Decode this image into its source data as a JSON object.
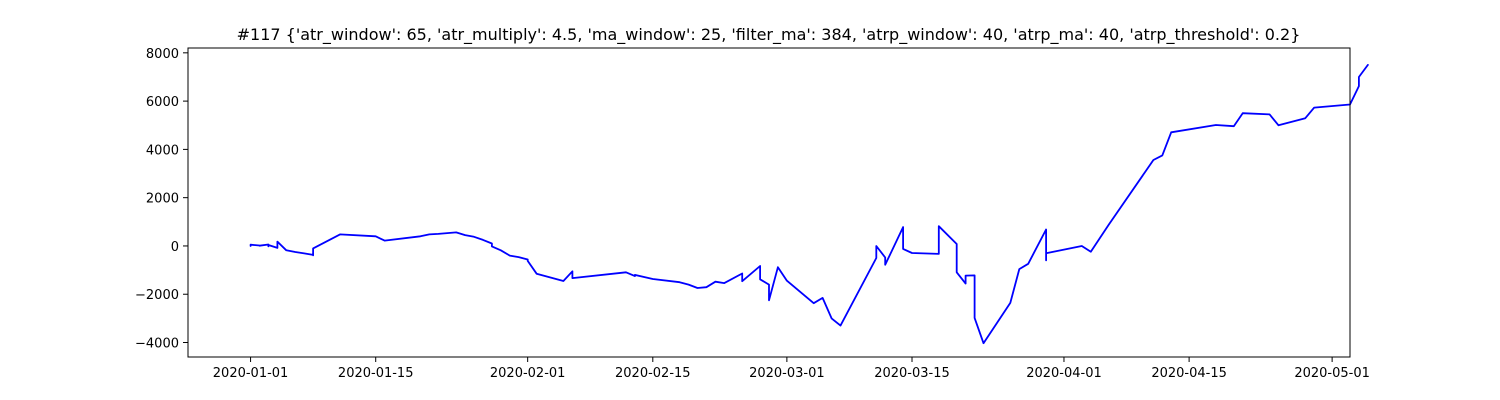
{
  "chart_data": {
    "type": "line",
    "title": "#117 {'atr_window': 65, 'atr_multiply': 4.5, 'ma_window': 25, 'filter_ma': 384, 'atrp_window': 40, 'atrp_ma': 40, 'atrp_threshold': 0.2}",
    "xlabel": "",
    "ylabel": "",
    "x_axis_type": "date",
    "xlim": [
      "2019-12-25",
      "2020-05-03"
    ],
    "ylim": [
      -4600,
      8200
    ],
    "x_ticks": [
      "2020-01-01",
      "2020-01-15",
      "2020-02-01",
      "2020-02-15",
      "2020-03-01",
      "2020-03-15",
      "2020-04-01",
      "2020-04-15",
      "2020-05-01"
    ],
    "y_ticks": [
      -4000,
      -2000,
      0,
      2000,
      4000,
      6000,
      8000
    ],
    "grid": false,
    "line_color": "#0000ff",
    "series": [
      {
        "points": [
          [
            "2020-01-01",
            0
          ],
          [
            "2020-01-01",
            50
          ],
          [
            "2020-01-02",
            20
          ],
          [
            "2020-01-02",
            10
          ],
          [
            "2020-01-03",
            60
          ],
          [
            "2020-01-03",
            -20
          ],
          [
            "2020-01-03",
            40
          ],
          [
            "2020-01-04",
            -80
          ],
          [
            "2020-01-04",
            180
          ],
          [
            "2020-01-05",
            -180
          ],
          [
            "2020-01-06",
            -250
          ],
          [
            "2020-01-07",
            -310
          ],
          [
            "2020-01-08",
            -370
          ],
          [
            "2020-01-08",
            -390
          ],
          [
            "2020-01-08",
            -100
          ],
          [
            "2020-01-11",
            480
          ],
          [
            "2020-01-15",
            400
          ],
          [
            "2020-01-16",
            220
          ],
          [
            "2020-01-20",
            400
          ],
          [
            "2020-01-21",
            480
          ],
          [
            "2020-01-22",
            500
          ],
          [
            "2020-01-24",
            560
          ],
          [
            "2020-01-25",
            450
          ],
          [
            "2020-01-26",
            380
          ],
          [
            "2020-01-27",
            250
          ],
          [
            "2020-01-28",
            100
          ],
          [
            "2020-01-28",
            -20
          ],
          [
            "2020-01-29",
            -180
          ],
          [
            "2020-01-30",
            -400
          ],
          [
            "2020-01-31",
            -460
          ],
          [
            "2020-02-01",
            -560
          ],
          [
            "2020-02-01",
            -620
          ],
          [
            "2020-02-02",
            -1150
          ],
          [
            "2020-02-05",
            -1450
          ],
          [
            "2020-02-06",
            -1050
          ],
          [
            "2020-02-06",
            -1330
          ],
          [
            "2020-02-12",
            -1090
          ],
          [
            "2020-02-13",
            -1250
          ],
          [
            "2020-02-13",
            -1200
          ],
          [
            "2020-02-15",
            -1370
          ],
          [
            "2020-02-18",
            -1500
          ],
          [
            "2020-02-19",
            -1600
          ],
          [
            "2020-02-20",
            -1740
          ],
          [
            "2020-02-21",
            -1710
          ],
          [
            "2020-02-22",
            -1480
          ],
          [
            "2020-02-23",
            -1540
          ],
          [
            "2020-02-25",
            -1140
          ],
          [
            "2020-02-25",
            -1460
          ],
          [
            "2020-02-27",
            -830
          ],
          [
            "2020-02-27",
            -1380
          ],
          [
            "2020-02-28",
            -1600
          ],
          [
            "2020-02-28",
            -2250
          ],
          [
            "2020-02-29",
            -880
          ],
          [
            "2020-03-01",
            -1440
          ],
          [
            "2020-03-04",
            -2370
          ],
          [
            "2020-03-05",
            -2150
          ],
          [
            "2020-03-06",
            -3000
          ],
          [
            "2020-03-07",
            -3300
          ],
          [
            "2020-03-11",
            -500
          ],
          [
            "2020-03-11",
            0
          ],
          [
            "2020-03-12",
            -480
          ],
          [
            "2020-03-12",
            -780
          ],
          [
            "2020-03-14",
            780
          ],
          [
            "2020-03-14",
            -120
          ],
          [
            "2020-03-15",
            -290
          ],
          [
            "2020-03-18",
            -330
          ],
          [
            "2020-03-18",
            820
          ],
          [
            "2020-03-20",
            80
          ],
          [
            "2020-03-20",
            -1090
          ],
          [
            "2020-03-21",
            -1560
          ],
          [
            "2020-03-21",
            -1230
          ],
          [
            "2020-03-22",
            -1220
          ],
          [
            "2020-03-22",
            -2980
          ],
          [
            "2020-03-23",
            -4030
          ],
          [
            "2020-03-26",
            -2360
          ],
          [
            "2020-03-27",
            -960
          ],
          [
            "2020-03-28",
            -740
          ],
          [
            "2020-03-30",
            680
          ],
          [
            "2020-03-30",
            -600
          ],
          [
            "2020-03-30",
            -300
          ],
          [
            "2020-04-03",
            0
          ],
          [
            "2020-04-04",
            -240
          ],
          [
            "2020-04-06",
            880
          ],
          [
            "2020-04-11",
            3560
          ],
          [
            "2020-04-12",
            3750
          ],
          [
            "2020-04-13",
            4710
          ],
          [
            "2020-04-18",
            5010
          ],
          [
            "2020-04-20",
            4960
          ],
          [
            "2020-04-21",
            5500
          ],
          [
            "2020-04-24",
            5450
          ],
          [
            "2020-04-25",
            5000
          ],
          [
            "2020-04-28",
            5290
          ],
          [
            "2020-04-29",
            5730
          ],
          [
            "2020-05-03",
            5860
          ],
          [
            "2020-05-04",
            6620
          ],
          [
            "2020-05-04",
            7000
          ],
          [
            "2020-05-05",
            7500
          ]
        ]
      }
    ]
  }
}
